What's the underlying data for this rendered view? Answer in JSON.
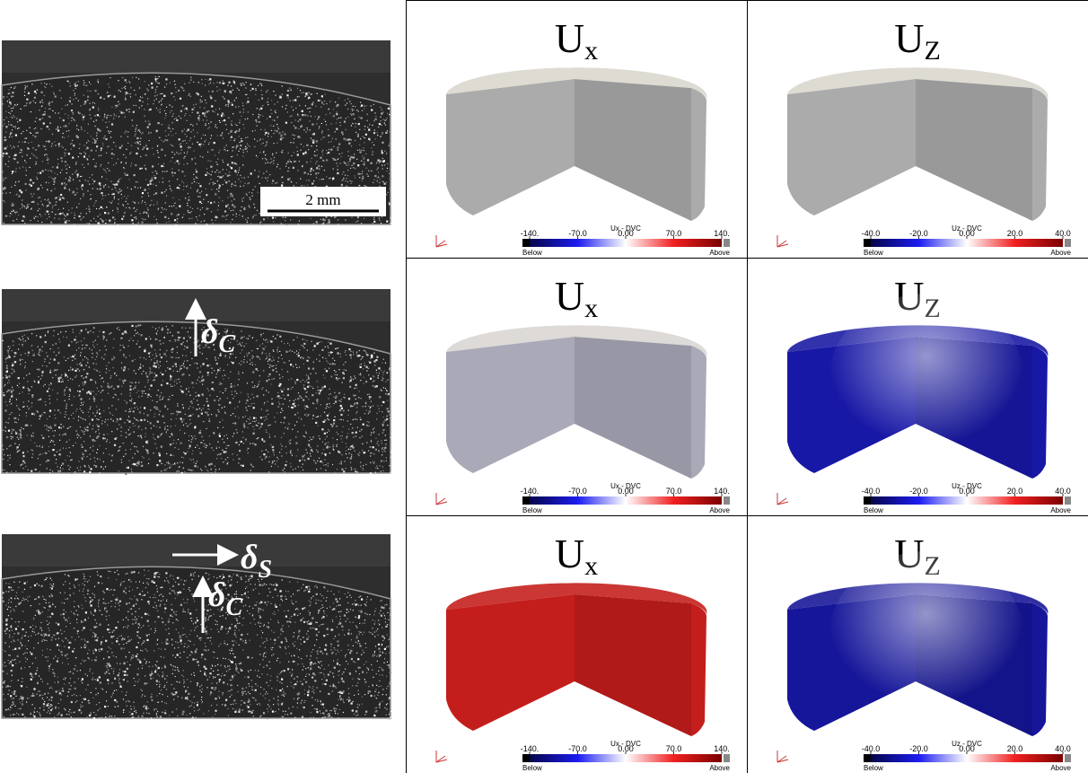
{
  "images": [
    {
      "scale_bar": "2 mm"
    },
    {
      "annotations": [
        {
          "symbol": "δ",
          "subscript": "C"
        }
      ]
    },
    {
      "annotations": [
        {
          "symbol": "δ",
          "subscript": "S"
        },
        {
          "symbol": "δ",
          "subscript": "C"
        }
      ]
    }
  ],
  "columns": [
    {
      "symbol": "U",
      "subscript": "x",
      "colorbar": {
        "title": "Ux - DVC",
        "ticks": [
          {
            "value": -140,
            "label": "-140."
          },
          {
            "value": -70,
            "label": "-70.0"
          },
          {
            "value": 0,
            "label": "0.00"
          },
          {
            "value": 70,
            "label": "70.0"
          },
          {
            "value": 140,
            "label": "140."
          }
        ],
        "below": "Below",
        "above": "Above"
      },
      "panels": [
        {
          "color": "#ababab"
        },
        {
          "color": "#a9a9b8"
        },
        {
          "color": "#c41e1c"
        }
      ]
    },
    {
      "symbol": "U",
      "subscript": "Z",
      "colorbar": {
        "title": "Uz - DVC",
        "ticks": [
          {
            "value": -40,
            "label": "-40.0"
          },
          {
            "value": -20,
            "label": "-20.0"
          },
          {
            "value": 0,
            "label": "0.00"
          },
          {
            "value": 20,
            "label": "20.0"
          },
          {
            "value": 40,
            "label": "40.0"
          }
        ],
        "below": "Below",
        "above": "Above"
      },
      "panels": [
        {
          "color": "#ababab"
        },
        {
          "color": "#1818a6"
        },
        {
          "color": "#16169a"
        }
      ]
    }
  ]
}
